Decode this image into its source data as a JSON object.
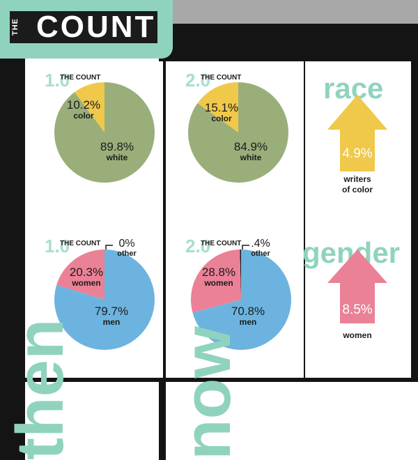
{
  "logo": {
    "prefix": "THE",
    "word": "COUNT"
  },
  "colors": {
    "white_slice": "#9aae7a",
    "color_slice": "#f0c84a",
    "men_slice": "#6cb4df",
    "women_slice": "#ea8197",
    "accent": "#8fd3bf"
  },
  "then": {
    "side_label": "then"
  },
  "now": {
    "side_label": "now"
  },
  "chart_data": [
    {
      "type": "pie",
      "version": "1.0",
      "label": "THE COUNT",
      "categories": [
        "color",
        "white"
      ],
      "values": [
        10.2,
        89.8
      ],
      "value_labels": [
        "10.2%",
        "89.8%"
      ]
    },
    {
      "type": "pie",
      "version": "2.0",
      "label": "THE COUNT",
      "categories": [
        "color",
        "white"
      ],
      "values": [
        15.1,
        84.9
      ],
      "value_labels": [
        "15.1%",
        "84.9%"
      ]
    },
    {
      "type": "pie",
      "version": "1.0",
      "label": "THE COUNT",
      "categories": [
        "other",
        "women",
        "men"
      ],
      "values": [
        0,
        20.3,
        79.7
      ],
      "value_labels": [
        "0%",
        "20.3%",
        "79.7%"
      ]
    },
    {
      "type": "pie",
      "version": "2.0",
      "label": "THE COUNT",
      "categories": [
        "other",
        "women",
        "men"
      ],
      "values": [
        0.4,
        28.8,
        70.8
      ],
      "value_labels": [
        ".4%",
        "28.8%",
        "70.8%"
      ]
    }
  ],
  "race_change": {
    "title": "race",
    "value": "4.9%",
    "caption_line1": "writers",
    "caption_line2": "of color"
  },
  "gender_change": {
    "title": "gender",
    "value": "8.5%",
    "caption_line1": "women"
  }
}
